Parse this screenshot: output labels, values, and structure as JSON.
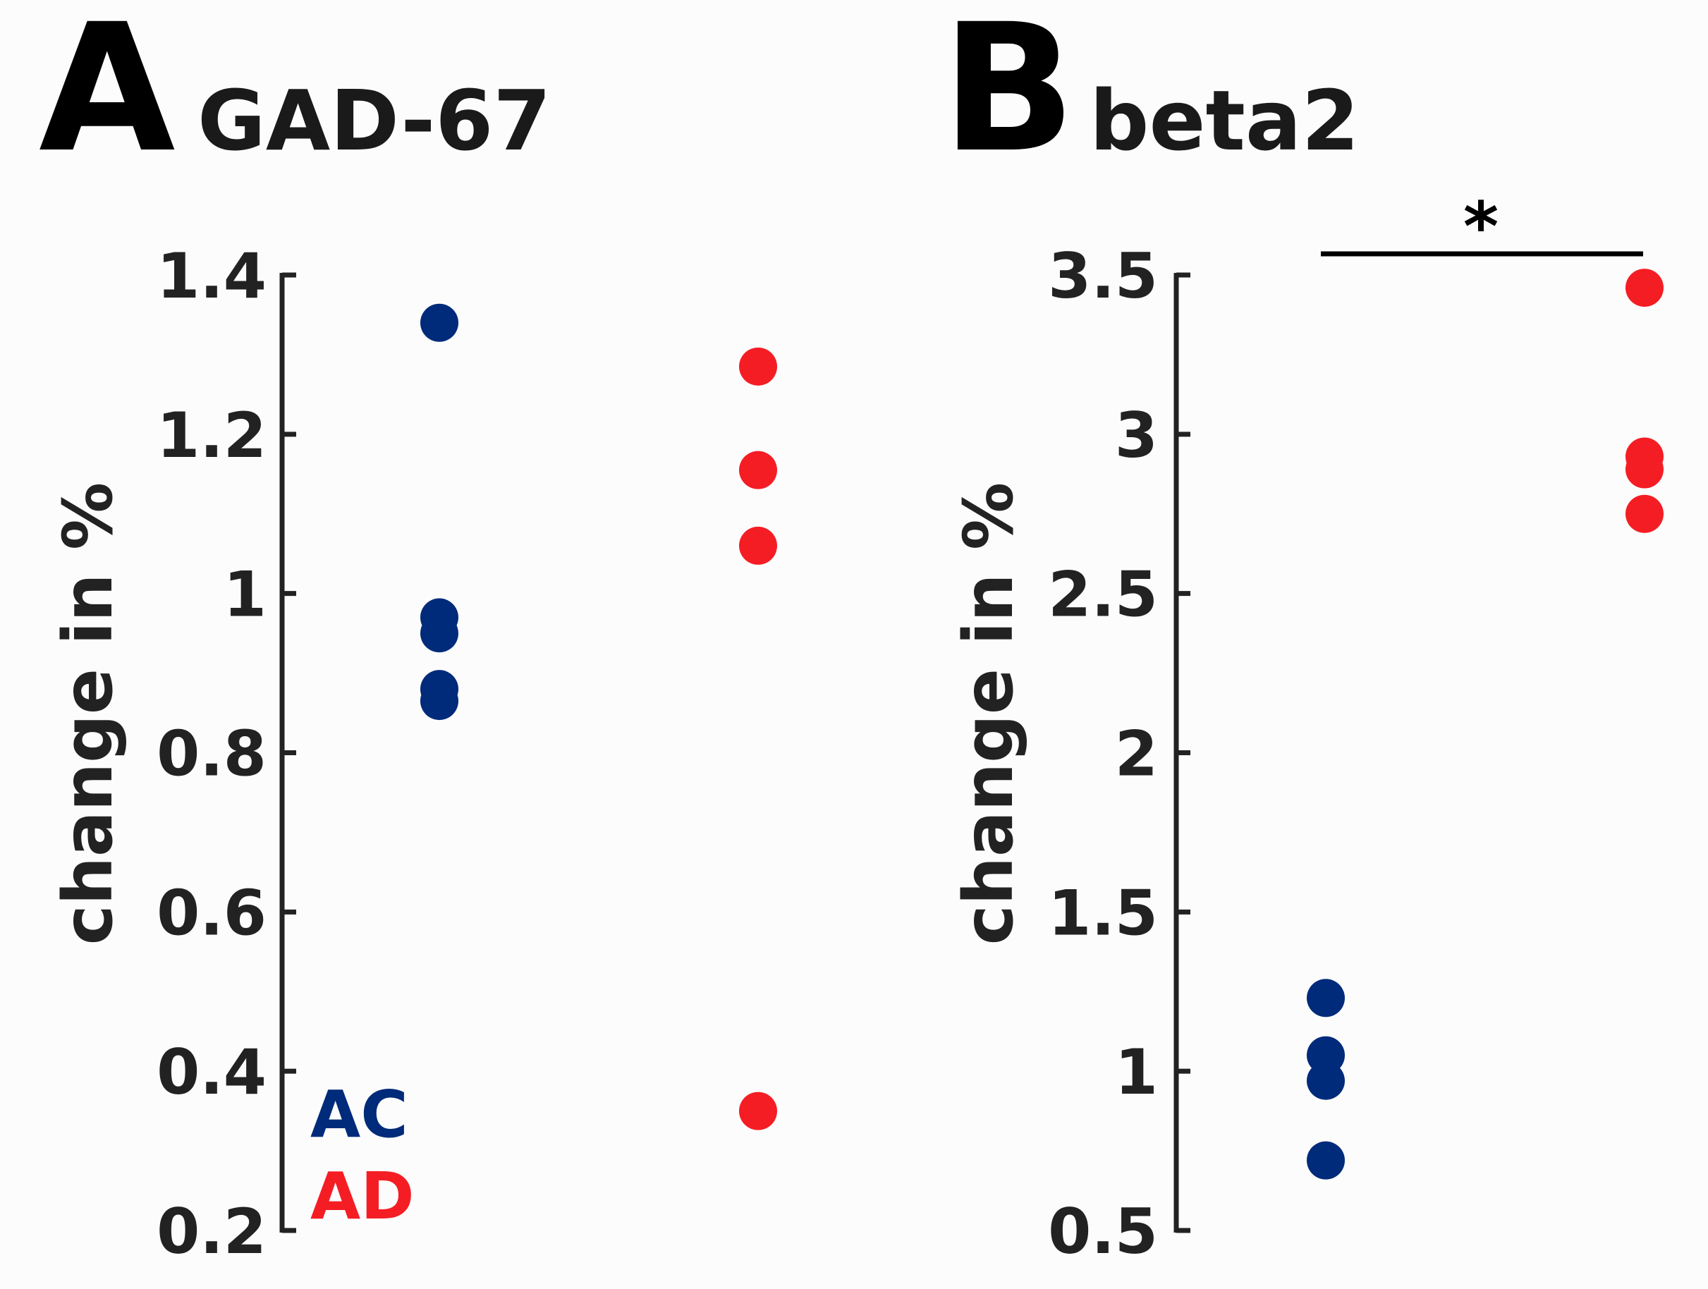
{
  "colors": {
    "AC": "#002a7a",
    "AD": "#f51d24",
    "axis": "#222222",
    "background": "#fcfcfc"
  },
  "legend": {
    "AC": "AC",
    "AD": "AD"
  },
  "chart_data": [
    {
      "type": "scatter",
      "panel": "A",
      "title": "GAD-67",
      "ylabel": "change in %",
      "xlabel": "",
      "ylim": [
        0.2,
        1.4
      ],
      "yticks": [
        0.2,
        0.4,
        0.6,
        0.8,
        1,
        1.2,
        1.4
      ],
      "ytick_labels": [
        "0.2",
        "0.4",
        "0.6",
        "0.8",
        "1",
        "1.2",
        "1.4"
      ],
      "legend_position": "bottom-left",
      "series": [
        {
          "name": "AC",
          "group_index": 0,
          "values": [
            1.34,
            0.97,
            0.95,
            0.88,
            0.865
          ]
        },
        {
          "name": "AD",
          "group_index": 1,
          "values": [
            1.285,
            1.155,
            1.06,
            0.35
          ]
        }
      ],
      "significance": null
    },
    {
      "type": "scatter",
      "panel": "B",
      "title": "beta2",
      "ylabel": "change in %",
      "xlabel": "",
      "ylim": [
        0.5,
        3.5
      ],
      "yticks": [
        0.5,
        1,
        1.5,
        2,
        2.5,
        3,
        3.5
      ],
      "ytick_labels": [
        "0.5",
        "1",
        "1.5",
        "2",
        "2.5",
        "3",
        "3.5"
      ],
      "series": [
        {
          "name": "AC",
          "group_index": 0,
          "values": [
            1.23,
            1.05,
            0.97,
            0.72
          ]
        },
        {
          "name": "AD",
          "group_index": 1,
          "values": [
            3.46,
            2.93,
            2.89,
            2.75
          ]
        }
      ],
      "significance": {
        "label": "*",
        "between": [
          "AC",
          "AD"
        ]
      }
    }
  ]
}
